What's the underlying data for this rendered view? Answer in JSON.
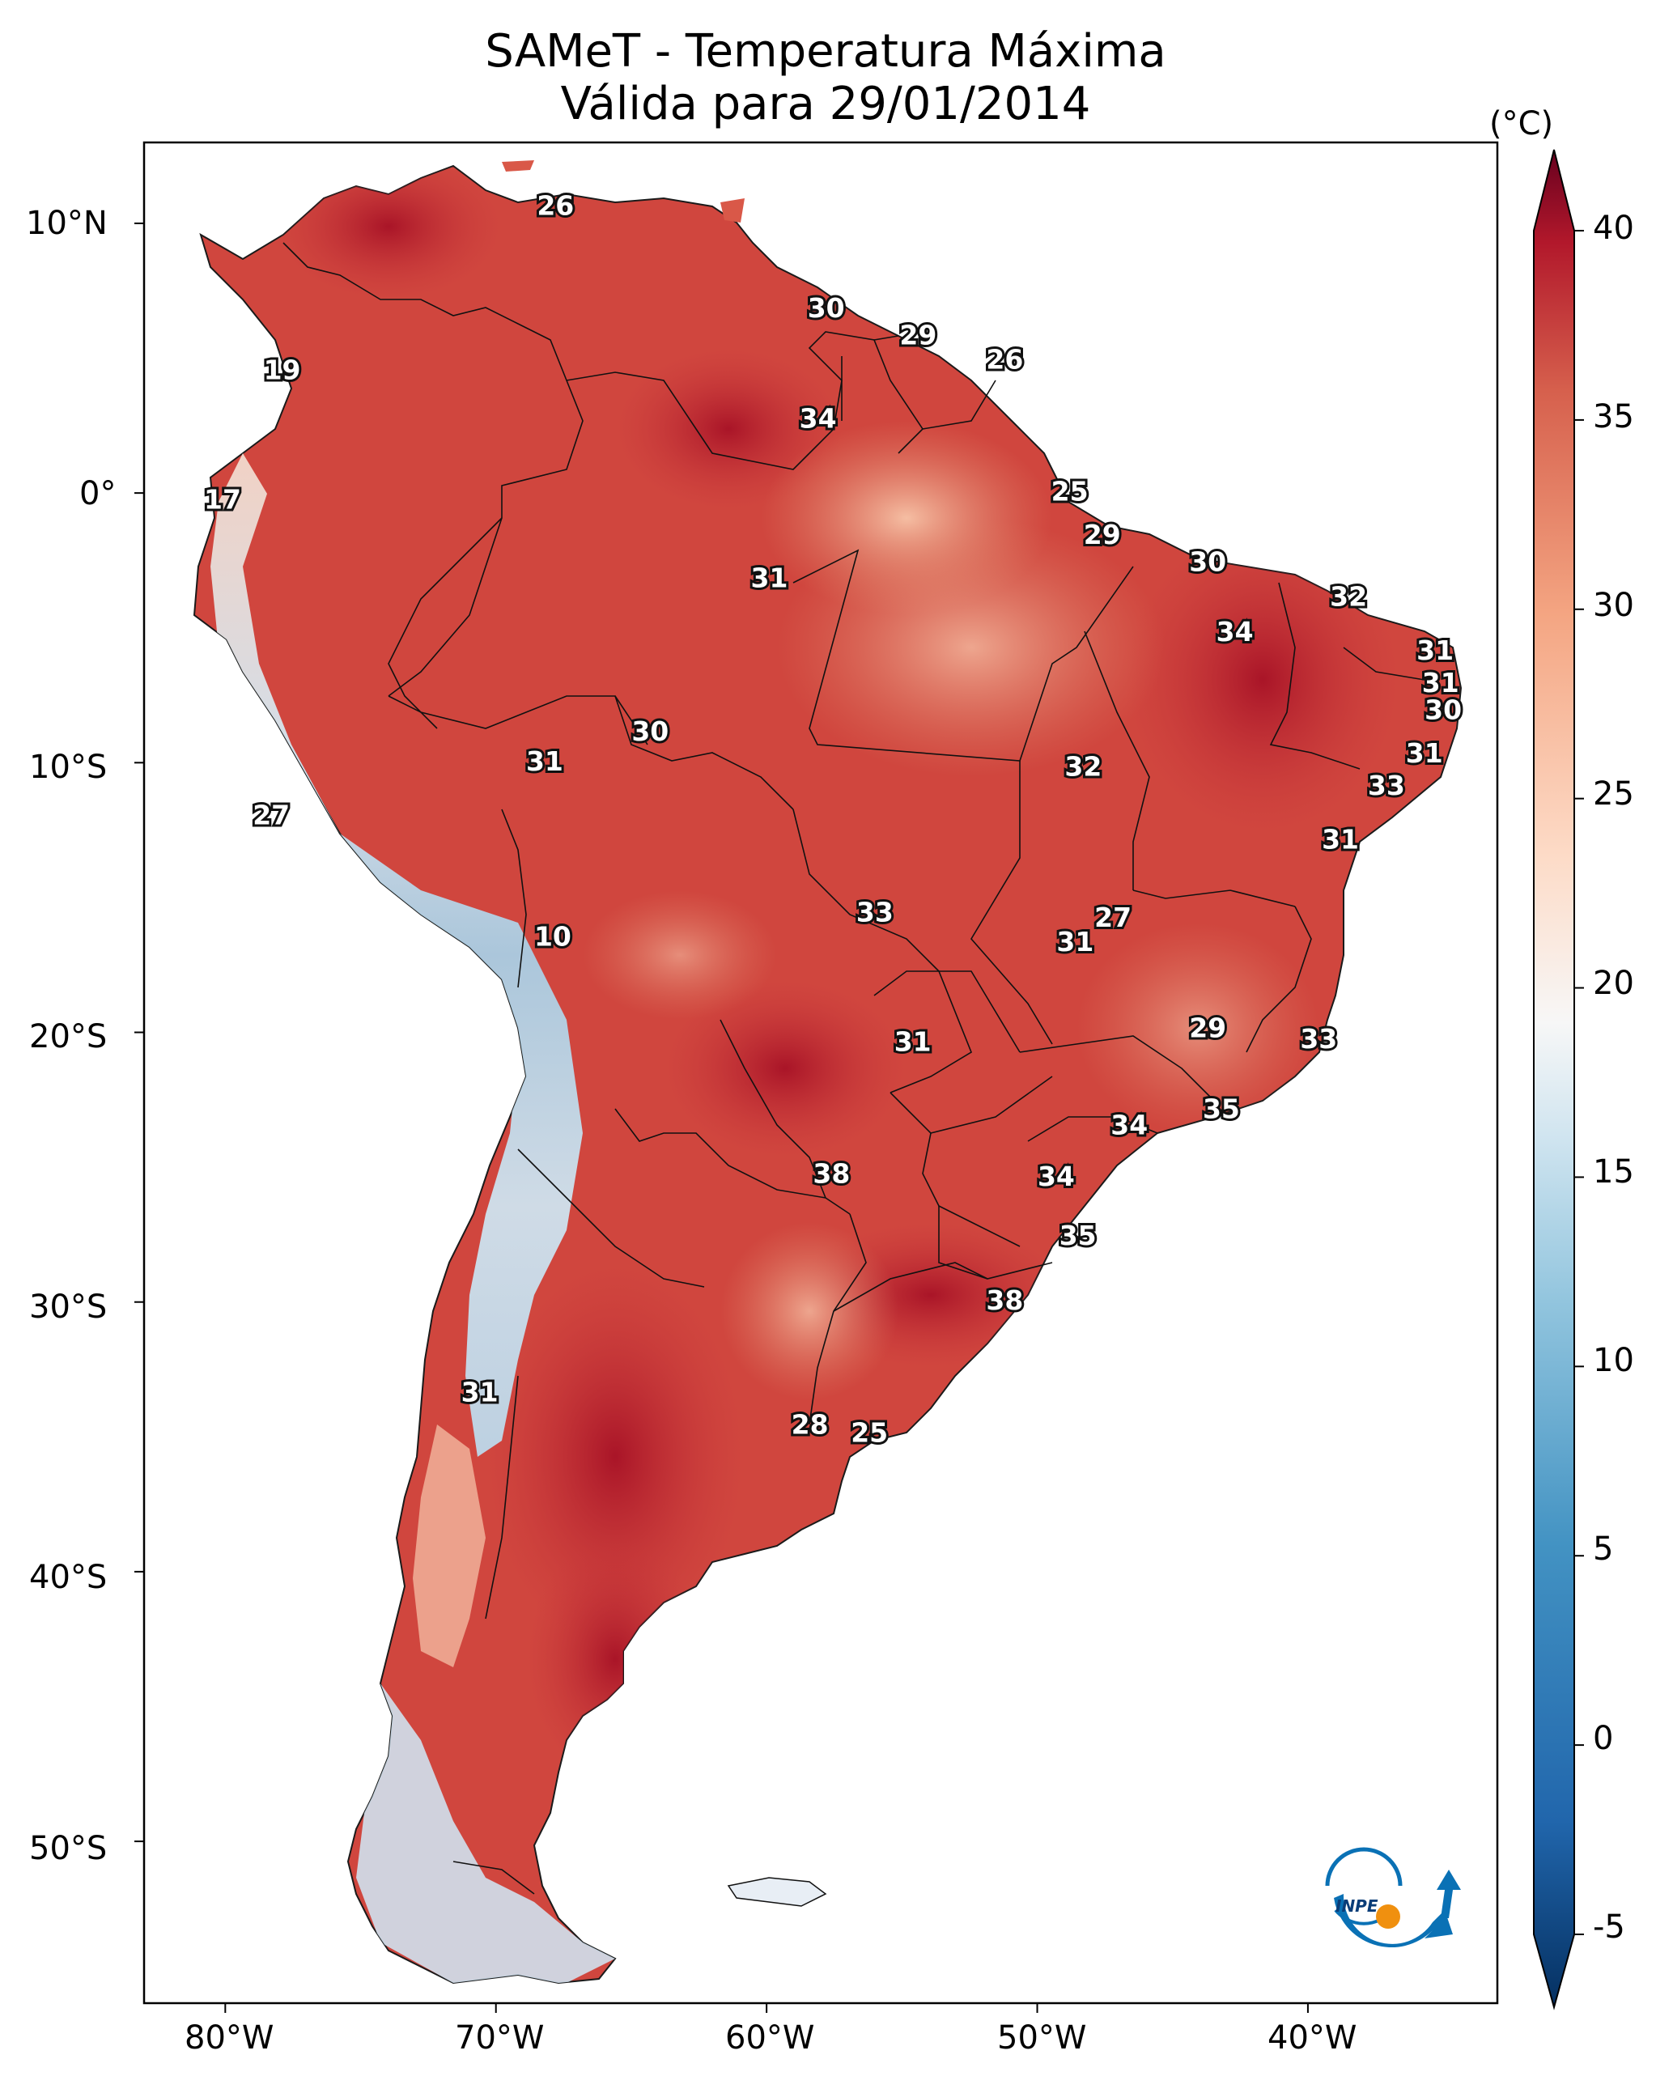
{
  "title": {
    "line1": "SAMeT - Temperatura Máxima",
    "line2": "Válida para 29/01/2014"
  },
  "map": {
    "lat_ticks": [
      "10°N",
      "0°",
      "10°S",
      "20°S",
      "30°S",
      "40°S",
      "50°S"
    ],
    "lon_ticks": [
      "80°W",
      "70°W",
      "60°W",
      "50°W",
      "40°W"
    ],
    "extent": {
      "lon": [
        -83,
        -33
      ],
      "lat": [
        -56,
        13
      ]
    }
  },
  "colorbar": {
    "unit": "(°C)",
    "ticks": [
      "40",
      "35",
      "30",
      "25",
      "20",
      "15",
      "10",
      "5",
      "0",
      "-5"
    ],
    "range": [
      -5,
      40
    ],
    "colormap": "RdBu_r",
    "extend": "both"
  },
  "logo": {
    "text": "INPE"
  },
  "station_values": [
    {
      "lon": -67.8,
      "lat": 10.6,
      "value": "26"
    },
    {
      "lon": -57.8,
      "lat": 6.8,
      "value": "30"
    },
    {
      "lon": -54.4,
      "lat": 5.8,
      "value": "29"
    },
    {
      "lon": -51.2,
      "lat": 4.9,
      "value": "26"
    },
    {
      "lon": -58.1,
      "lat": 2.7,
      "value": "34"
    },
    {
      "lon": -77.9,
      "lat": 4.5,
      "value": "19"
    },
    {
      "lon": -48.8,
      "lat": 0.0,
      "value": "25"
    },
    {
      "lon": -80.1,
      "lat": -0.3,
      "value": "17"
    },
    {
      "lon": -47.6,
      "lat": -1.6,
      "value": "29"
    },
    {
      "lon": -43.7,
      "lat": -2.6,
      "value": "30"
    },
    {
      "lon": -59.9,
      "lat": -3.2,
      "value": "31"
    },
    {
      "lon": -38.5,
      "lat": -3.9,
      "value": "32"
    },
    {
      "lon": -42.7,
      "lat": -5.2,
      "value": "34"
    },
    {
      "lon": -35.3,
      "lat": -5.9,
      "value": "31"
    },
    {
      "lon": -35.1,
      "lat": -7.1,
      "value": "31"
    },
    {
      "lon": -35.0,
      "lat": -8.1,
      "value": "30"
    },
    {
      "lon": -64.3,
      "lat": -8.9,
      "value": "30"
    },
    {
      "lon": -35.7,
      "lat": -9.7,
      "value": "31"
    },
    {
      "lon": -68.2,
      "lat": -10.0,
      "value": "31"
    },
    {
      "lon": -48.3,
      "lat": -10.2,
      "value": "32"
    },
    {
      "lon": -37.1,
      "lat": -10.9,
      "value": "33"
    },
    {
      "lon": -78.3,
      "lat": -12.0,
      "value": "27"
    },
    {
      "lon": -38.8,
      "lat": -12.9,
      "value": "31"
    },
    {
      "lon": -56.0,
      "lat": -15.6,
      "value": "33"
    },
    {
      "lon": -47.2,
      "lat": -15.8,
      "value": "27"
    },
    {
      "lon": -48.6,
      "lat": -16.7,
      "value": "31"
    },
    {
      "lon": -67.9,
      "lat": -16.5,
      "value": "10"
    },
    {
      "lon": -43.7,
      "lat": -19.9,
      "value": "29"
    },
    {
      "lon": -54.6,
      "lat": -20.4,
      "value": "31"
    },
    {
      "lon": -39.6,
      "lat": -20.3,
      "value": "33"
    },
    {
      "lon": -43.2,
      "lat": -22.9,
      "value": "35"
    },
    {
      "lon": -46.6,
      "lat": -23.5,
      "value": "34"
    },
    {
      "lon": -57.6,
      "lat": -25.3,
      "value": "38"
    },
    {
      "lon": -49.3,
      "lat": -25.4,
      "value": "34"
    },
    {
      "lon": -48.5,
      "lat": -27.6,
      "value": "35"
    },
    {
      "lon": -51.2,
      "lat": -30.0,
      "value": "38"
    },
    {
      "lon": -70.6,
      "lat": -33.4,
      "value": "31"
    },
    {
      "lon": -58.4,
      "lat": -34.6,
      "value": "28"
    },
    {
      "lon": -56.2,
      "lat": -34.9,
      "value": "25"
    }
  ]
}
